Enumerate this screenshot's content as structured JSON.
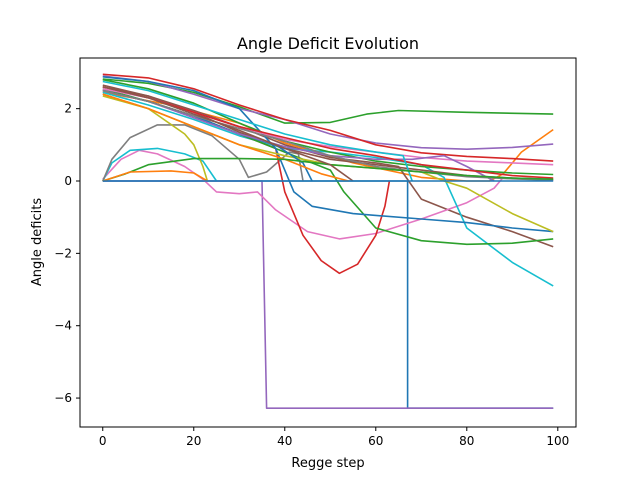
{
  "chart_data": {
    "type": "line",
    "title": "Angle Deficit Evolution",
    "xlabel": "Regge step",
    "ylabel": "Angle deficits",
    "xlim": [
      -5,
      104
    ],
    "ylim": [
      -6.8,
      3.4
    ],
    "xticks": [
      0,
      20,
      40,
      60,
      80,
      100
    ],
    "yticks": [
      -6,
      -4,
      -2,
      0,
      2
    ],
    "ytick_labels": [
      "−6",
      "−4",
      "−2",
      "0",
      "2"
    ],
    "grid": false,
    "legend": "none",
    "series": [
      {
        "name": "s1",
        "color": "#1f77b4",
        "points": [
          [
            0,
            0
          ],
          [
            67,
            0
          ],
          [
            67,
            -6.28
          ],
          [
            99,
            -6.28
          ]
        ]
      },
      {
        "name": "s2",
        "color": "#9467bd",
        "points": [
          [
            0,
            0
          ],
          [
            35,
            0
          ],
          [
            36,
            -6.28
          ],
          [
            99,
            -6.28
          ]
        ]
      },
      {
        "name": "s3",
        "color": "#2ca02c",
        "points": [
          [
            0,
            2.82
          ],
          [
            10,
            2.7
          ],
          [
            20,
            2.45
          ],
          [
            30,
            2.05
          ],
          [
            40,
            1.6
          ],
          [
            50,
            1.62
          ],
          [
            58,
            1.85
          ],
          [
            65,
            1.95
          ],
          [
            80,
            1.9
          ],
          [
            99,
            1.85
          ]
        ]
      },
      {
        "name": "s4",
        "color": "#ff7f0e",
        "points": [
          [
            0,
            2.45
          ],
          [
            15,
            2.1
          ],
          [
            30,
            1.6
          ],
          [
            40,
            1.05
          ],
          [
            55,
            0.5
          ],
          [
            70,
            0.1
          ],
          [
            80,
            0
          ],
          [
            85,
            0
          ],
          [
            88,
            0.2
          ],
          [
            92,
            0.8
          ],
          [
            99,
            1.42
          ]
        ]
      },
      {
        "name": "s5",
        "color": "#9467bd",
        "points": [
          [
            0,
            2.9
          ],
          [
            10,
            2.75
          ],
          [
            20,
            2.4
          ],
          [
            30,
            2.0
          ],
          [
            40,
            1.7
          ],
          [
            50,
            1.3
          ],
          [
            60,
            1.05
          ],
          [
            70,
            0.92
          ],
          [
            80,
            0.88
          ],
          [
            90,
            0.93
          ],
          [
            99,
            1.02
          ]
        ]
      },
      {
        "name": "s6",
        "color": "#d62728",
        "points": [
          [
            0,
            2.95
          ],
          [
            10,
            2.85
          ],
          [
            20,
            2.55
          ],
          [
            30,
            2.1
          ],
          [
            40,
            1.7
          ],
          [
            50,
            1.4
          ],
          [
            60,
            1.0
          ],
          [
            70,
            0.78
          ],
          [
            80,
            0.68
          ],
          [
            90,
            0.62
          ],
          [
            99,
            0.55
          ]
        ]
      },
      {
        "name": "s7",
        "color": "#8c564b",
        "points": [
          [
            0,
            2.6
          ],
          [
            10,
            2.35
          ],
          [
            20,
            1.95
          ],
          [
            30,
            1.5
          ],
          [
            40,
            1.0
          ],
          [
            50,
            0.65
          ],
          [
            60,
            0.5
          ],
          [
            65,
            0.4
          ],
          [
            70,
            -0.5
          ],
          [
            80,
            -1.0
          ],
          [
            90,
            -1.4
          ],
          [
            99,
            -1.82
          ]
        ]
      },
      {
        "name": "s8",
        "color": "#e377c2",
        "points": [
          [
            0,
            0.05
          ],
          [
            4,
            0.6
          ],
          [
            8,
            0.85
          ],
          [
            12,
            0.75
          ],
          [
            18,
            0.4
          ],
          [
            22,
            0.05
          ],
          [
            25,
            -0.3
          ],
          [
            30,
            -0.35
          ],
          [
            34,
            -0.3
          ],
          [
            38,
            -0.8
          ],
          [
            45,
            -1.4
          ],
          [
            52,
            -1.6
          ],
          [
            60,
            -1.45
          ],
          [
            70,
            -1.05
          ],
          [
            80,
            -0.6
          ],
          [
            86,
            -0.2
          ],
          [
            88,
            0.1
          ]
        ]
      },
      {
        "name": "s9",
        "color": "#17becf",
        "points": [
          [
            0,
            0
          ],
          [
            2,
            0.5
          ],
          [
            6,
            0.85
          ],
          [
            12,
            0.9
          ],
          [
            18,
            0.75
          ],
          [
            22,
            0.55
          ],
          [
            25,
            0
          ]
        ]
      },
      {
        "name": "s10",
        "color": "#7f7f7f",
        "points": [
          [
            0,
            0
          ],
          [
            2,
            0.6
          ],
          [
            6,
            1.2
          ],
          [
            12,
            1.55
          ],
          [
            18,
            1.55
          ],
          [
            24,
            1.25
          ],
          [
            30,
            0.6
          ],
          [
            32,
            0.1
          ],
          [
            36,
            0.25
          ],
          [
            41,
            0.8
          ],
          [
            43,
            0.75
          ],
          [
            44,
            0
          ]
        ]
      },
      {
        "name": "s11",
        "color": "#bcbd22",
        "points": [
          [
            0,
            2.4
          ],
          [
            10,
            2.0
          ],
          [
            18,
            1.3
          ],
          [
            20,
            1.0
          ],
          [
            22,
            0.4
          ],
          [
            23,
            0
          ]
        ]
      },
      {
        "name": "s12",
        "color": "#17becf",
        "points": [
          [
            0,
            2.45
          ],
          [
            10,
            2.1
          ],
          [
            20,
            1.7
          ],
          [
            30,
            1.25
          ],
          [
            40,
            0.9
          ],
          [
            50,
            0.8
          ],
          [
            60,
            0.65
          ],
          [
            70,
            0.45
          ],
          [
            75,
            0.1
          ],
          [
            80,
            -1.3
          ],
          [
            90,
            -2.25
          ],
          [
            99,
            -2.9
          ]
        ]
      },
      {
        "name": "s13",
        "color": "#d62728",
        "points": [
          [
            0,
            2.5
          ],
          [
            10,
            2.2
          ],
          [
            20,
            1.8
          ],
          [
            30,
            1.3
          ],
          [
            38,
            0.9
          ],
          [
            40,
            -0.3
          ],
          [
            44,
            -1.5
          ],
          [
            48,
            -2.2
          ],
          [
            52,
            -2.55
          ],
          [
            56,
            -2.3
          ],
          [
            60,
            -1.5
          ],
          [
            62,
            -0.7
          ],
          [
            63,
            0
          ]
        ]
      },
      {
        "name": "s14",
        "color": "#2ca02c",
        "points": [
          [
            0,
            2.55
          ],
          [
            10,
            2.2
          ],
          [
            20,
            1.8
          ],
          [
            30,
            1.3
          ],
          [
            40,
            0.8
          ],
          [
            50,
            0.3
          ],
          [
            53,
            -0.3
          ],
          [
            60,
            -1.3
          ],
          [
            70,
            -1.65
          ],
          [
            80,
            -1.75
          ],
          [
            90,
            -1.72
          ],
          [
            99,
            -1.6
          ]
        ]
      },
      {
        "name": "s15",
        "color": "#1f77b4",
        "points": [
          [
            0,
            2.88
          ],
          [
            10,
            2.75
          ],
          [
            20,
            2.5
          ],
          [
            30,
            2.0
          ],
          [
            38,
            0.9
          ],
          [
            42,
            -0.3
          ],
          [
            46,
            -0.7
          ],
          [
            55,
            -0.9
          ],
          [
            70,
            -1.05
          ],
          [
            80,
            -1.15
          ],
          [
            90,
            -1.3
          ],
          [
            99,
            -1.4
          ]
        ]
      },
      {
        "name": "s16",
        "color": "#bcbd22",
        "points": [
          [
            0,
            2.35
          ],
          [
            10,
            2.0
          ],
          [
            20,
            1.5
          ],
          [
            30,
            1.0
          ],
          [
            40,
            0.7
          ],
          [
            50,
            0.45
          ],
          [
            60,
            0.35
          ],
          [
            70,
            0.25
          ],
          [
            75,
            0
          ],
          [
            80,
            -0.2
          ],
          [
            90,
            -0.9
          ],
          [
            99,
            -1.4
          ]
        ]
      },
      {
        "name": "s17",
        "color": "#1f77b4",
        "points": [
          [
            0,
            2.5
          ],
          [
            10,
            2.2
          ],
          [
            20,
            1.8
          ],
          [
            30,
            1.3
          ],
          [
            38,
            1.0
          ],
          [
            44,
            0.5
          ],
          [
            46,
            0
          ]
        ]
      },
      {
        "name": "s18",
        "color": "#ff7f0e",
        "points": [
          [
            0,
            2.4
          ],
          [
            10,
            2.0
          ],
          [
            20,
            1.5
          ],
          [
            30,
            1.0
          ],
          [
            40,
            0.6
          ],
          [
            48,
            0.2
          ],
          [
            54,
            0
          ]
        ]
      },
      {
        "name": "s19",
        "color": "#8c564b",
        "points": [
          [
            0,
            2.65
          ],
          [
            10,
            2.35
          ],
          [
            20,
            1.9
          ],
          [
            30,
            1.35
          ],
          [
            40,
            0.9
          ],
          [
            50,
            0.6
          ],
          [
            60,
            0.45
          ],
          [
            70,
            0.3
          ],
          [
            80,
            0.15
          ],
          [
            90,
            0.08
          ],
          [
            99,
            0.04
          ]
        ]
      },
      {
        "name": "s20",
        "color": "#2ca02c",
        "points": [
          [
            0,
            2.8
          ],
          [
            10,
            2.55
          ],
          [
            20,
            2.15
          ],
          [
            30,
            1.6
          ],
          [
            40,
            1.1
          ],
          [
            50,
            0.8
          ],
          [
            60,
            0.55
          ],
          [
            70,
            0.4
          ],
          [
            80,
            0.3
          ],
          [
            90,
            0.22
          ],
          [
            99,
            0.18
          ]
        ]
      },
      {
        "name": "s21",
        "color": "#e377c2",
        "points": [
          [
            0,
            2.55
          ],
          [
            10,
            2.3
          ],
          [
            20,
            1.9
          ],
          [
            30,
            1.5
          ],
          [
            40,
            1.15
          ],
          [
            50,
            0.95
          ],
          [
            60,
            0.8
          ],
          [
            70,
            0.65
          ],
          [
            80,
            0.55
          ],
          [
            90,
            0.5
          ],
          [
            99,
            0.45
          ]
        ]
      },
      {
        "name": "s22",
        "color": "#9467bd",
        "points": [
          [
            0,
            2.5
          ],
          [
            10,
            2.2
          ],
          [
            20,
            1.75
          ],
          [
            30,
            1.3
          ],
          [
            40,
            0.95
          ],
          [
            50,
            0.7
          ],
          [
            60,
            0.6
          ],
          [
            68,
            0.6
          ],
          [
            75,
            0.7
          ],
          [
            80,
            0.4
          ],
          [
            86,
            0
          ]
        ]
      },
      {
        "name": "s23",
        "color": "#d62728",
        "points": [
          [
            0,
            2.6
          ],
          [
            10,
            2.3
          ],
          [
            20,
            1.9
          ],
          [
            30,
            1.5
          ],
          [
            40,
            1.2
          ],
          [
            50,
            0.9
          ],
          [
            60,
            0.7
          ],
          [
            70,
            0.45
          ],
          [
            80,
            0.3
          ],
          [
            90,
            0.15
          ],
          [
            99,
            0.08
          ]
        ]
      },
      {
        "name": "s24",
        "color": "#7f7f7f",
        "points": [
          [
            0,
            2.5
          ],
          [
            10,
            2.2
          ],
          [
            20,
            1.8
          ],
          [
            30,
            1.45
          ],
          [
            40,
            1.1
          ],
          [
            50,
            0.7
          ],
          [
            60,
            0.4
          ],
          [
            70,
            0.25
          ],
          [
            80,
            0.12
          ],
          [
            90,
            0.06
          ],
          [
            99,
            0.02
          ]
        ]
      },
      {
        "name": "s25",
        "color": "#17becf",
        "points": [
          [
            0,
            2.75
          ],
          [
            10,
            2.5
          ],
          [
            20,
            2.1
          ],
          [
            30,
            1.7
          ],
          [
            40,
            1.3
          ],
          [
            50,
            1.0
          ],
          [
            60,
            0.8
          ],
          [
            66,
            0.7
          ],
          [
            68,
            0
          ]
        ]
      },
      {
        "name": "s26",
        "color": "#2ca02c",
        "points": [
          [
            0,
            0
          ],
          [
            5,
            0.2
          ],
          [
            10,
            0.45
          ],
          [
            20,
            0.62
          ],
          [
            30,
            0.62
          ],
          [
            40,
            0.6
          ],
          [
            50,
            0.45
          ],
          [
            60,
            0.35
          ],
          [
            70,
            0.25
          ],
          [
            80,
            0.15
          ],
          [
            90,
            0.08
          ],
          [
            99,
            0.05
          ]
        ]
      },
      {
        "name": "s27",
        "color": "#ff7f0e",
        "points": [
          [
            0,
            0
          ],
          [
            6,
            0.25
          ],
          [
            15,
            0.28
          ],
          [
            20,
            0.22
          ],
          [
            23,
            0
          ]
        ]
      },
      {
        "name": "s28",
        "color": "#8c564b",
        "points": [
          [
            0,
            2.6
          ],
          [
            10,
            2.3
          ],
          [
            20,
            1.85
          ],
          [
            30,
            1.4
          ],
          [
            40,
            0.9
          ],
          [
            50,
            0.45
          ],
          [
            55,
            0
          ]
        ]
      },
      {
        "name": "s29",
        "color": "#1f77b4",
        "points": [
          [
            0,
            0
          ],
          [
            99,
            0
          ]
        ]
      }
    ]
  }
}
